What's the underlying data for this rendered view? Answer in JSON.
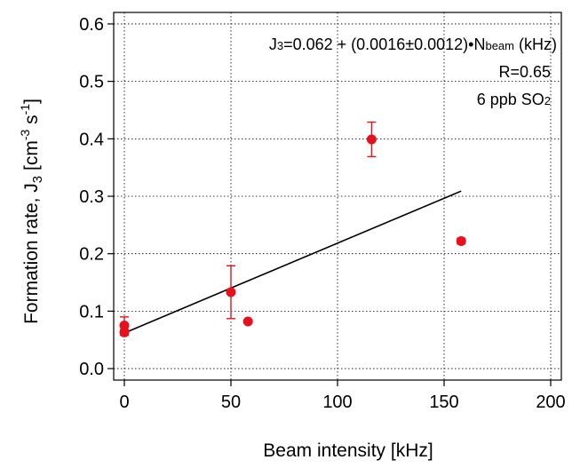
{
  "chart_data": {
    "type": "scatter",
    "title": "",
    "xlabel": "Beam intensity [kHz]",
    "ylabel": "Formation rate, J",
    "ylabel_sub": "3",
    "ylabel_unit_open": " [cm",
    "ylabel_unit_exp1": "-3",
    "ylabel_unit_mid": " s",
    "ylabel_unit_exp2": "-1",
    "ylabel_unit_close": "]",
    "xlim": [
      -5,
      205
    ],
    "ylim": [
      -0.02,
      0.62
    ],
    "xticks": [
      0,
      50,
      100,
      150,
      200
    ],
    "xtick_labels": [
      "0",
      "50",
      "100",
      "150",
      "200"
    ],
    "yticks": [
      0.0,
      0.1,
      0.2,
      0.3,
      0.4,
      0.5,
      0.6
    ],
    "ytick_labels": [
      "0.0",
      "0.1",
      "0.2",
      "0.3",
      "0.4",
      "0.5",
      "0.6"
    ],
    "grid": true,
    "marker_color": "#e8101a",
    "fit_color": "#000000",
    "points": [
      {
        "x": 0,
        "y": 0.075,
        "err": 0.015
      },
      {
        "x": 0,
        "y": 0.063,
        "err": 0.005
      },
      {
        "x": 50,
        "y": 0.133,
        "err": 0.046
      },
      {
        "x": 58,
        "y": 0.082,
        "err": 0.003
      },
      {
        "x": 116,
        "y": 0.399,
        "err": 0.03
      },
      {
        "x": 158,
        "y": 0.222,
        "err": 0.005
      }
    ],
    "fit": {
      "x": [
        0,
        158
      ],
      "y": [
        0.062,
        0.309
      ]
    },
    "annotations": {
      "eq_j": "J",
      "eq_j_sub": "3",
      "eq_rest": "=0.062 + (0.0016±0.0012)•N",
      "eq_n_sub": "beam",
      "eq_tail": " (kHz)",
      "r_value": "R=0.65",
      "so2_main": "6 ppb SO",
      "so2_sub": "2"
    }
  }
}
